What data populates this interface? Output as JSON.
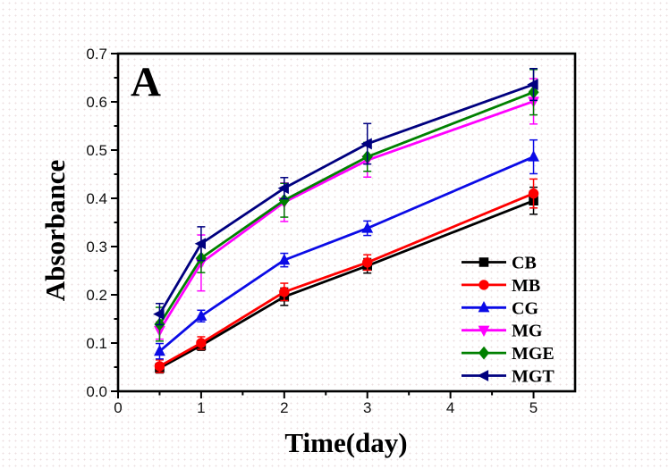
{
  "chart_data": {
    "type": "line",
    "panel_label": "A",
    "xlabel": "Time(day)",
    "ylabel": "Absorbance",
    "xlim": [
      0,
      5.5
    ],
    "ylim": [
      0.0,
      0.7
    ],
    "x_tick_values": [
      0,
      1,
      2,
      3,
      4,
      5
    ],
    "x_tick_labels": [
      "0",
      "1",
      "2",
      "3",
      "4",
      "5"
    ],
    "x_minor_ticks": [
      0.5,
      1.5,
      2.5,
      3.5,
      4.5
    ],
    "y_tick_values": [
      0.0,
      0.1,
      0.2,
      0.3,
      0.4,
      0.5,
      0.6,
      0.7
    ],
    "y_tick_labels": [
      "0.0",
      "0.1",
      "0.2",
      "0.3",
      "0.4",
      "0.5",
      "0.6",
      "0.7"
    ],
    "y_minor_ticks": [
      0.05,
      0.15,
      0.25,
      0.35,
      0.45,
      0.55,
      0.65
    ],
    "grid": false,
    "legend_position": "bottom-right",
    "x": [
      0.5,
      1,
      2,
      3,
      5
    ],
    "series": [
      {
        "name": "CB",
        "color": "#000000",
        "marker": "square",
        "values": [
          0.048,
          0.095,
          0.196,
          0.26,
          0.395
        ],
        "errors": [
          0.01,
          0.01,
          0.018,
          0.015,
          0.028
        ]
      },
      {
        "name": "MB",
        "color": "#fe0000",
        "marker": "circle",
        "values": [
          0.052,
          0.1,
          0.206,
          0.267,
          0.41
        ],
        "errors": [
          0.013,
          0.013,
          0.018,
          0.016,
          0.03
        ]
      },
      {
        "name": "CG",
        "color": "#0b0be6",
        "marker": "triangle-up",
        "values": [
          0.083,
          0.156,
          0.272,
          0.338,
          0.486
        ],
        "errors": [
          0.016,
          0.012,
          0.014,
          0.015,
          0.035
        ]
      },
      {
        "name": "MG",
        "color": "#ff00ff",
        "marker": "triangle-down",
        "values": [
          0.126,
          0.266,
          0.392,
          0.479,
          0.601
        ],
        "errors": [
          0.018,
          0.058,
          0.04,
          0.035,
          0.047
        ]
      },
      {
        "name": "MGE",
        "color": "#008000",
        "marker": "diamond",
        "values": [
          0.139,
          0.276,
          0.396,
          0.486,
          0.62
        ],
        "errors": [
          0.035,
          0.03,
          0.035,
          0.03,
          0.047
        ]
      },
      {
        "name": "MGT",
        "color": "#00007f",
        "marker": "triangle-left",
        "values": [
          0.16,
          0.306,
          0.421,
          0.513,
          0.636
        ],
        "errors": [
          0.022,
          0.035,
          0.022,
          0.042,
          0.033
        ]
      }
    ]
  }
}
